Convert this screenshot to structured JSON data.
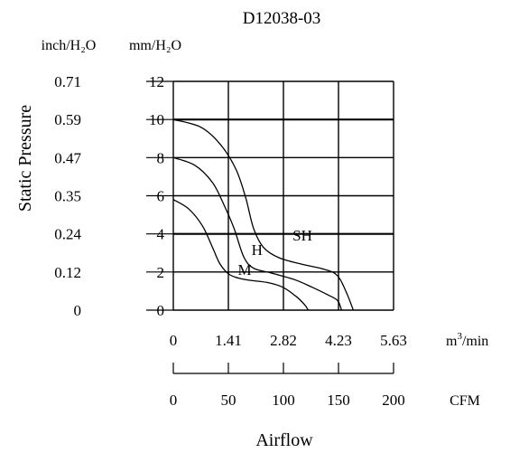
{
  "chart_data": {
    "type": "line",
    "title": "D12038-03",
    "left_axis": {
      "label": "Static Pressure",
      "units": [
        "inch/H₂O",
        "mm/H₂O"
      ],
      "ticks_mm": [
        "0",
        "2",
        "4",
        "6",
        "8",
        "10",
        "12"
      ],
      "ticks_inch": [
        "0",
        "0.12",
        "0.24",
        "0.35",
        "0.47",
        "0.59",
        "0.71"
      ],
      "ylim": [
        0,
        12
      ]
    },
    "bottom_axis": {
      "label": "Airflow",
      "ticks_m3min": [
        "0",
        "1.41",
        "2.82",
        "4.23",
        "5.63"
      ],
      "unit_m3min_base": "m",
      "unit_m3min_sup": "3",
      "unit_m3min_tail": "/min",
      "ticks_cfm": [
        "0",
        "50",
        "100",
        "150",
        "200"
      ],
      "unit_cfm": "CFM",
      "xlim": [
        0,
        5.63
      ]
    },
    "series": [
      {
        "name": "SH",
        "points": [
          [
            0,
            10.0
          ],
          [
            0.7,
            9.6
          ],
          [
            1.2,
            8.7
          ],
          [
            1.6,
            7.4
          ],
          [
            1.85,
            5.9
          ],
          [
            2.05,
            4.3
          ],
          [
            2.3,
            3.3
          ],
          [
            2.7,
            2.75
          ],
          [
            3.3,
            2.4
          ],
          [
            3.85,
            2.15
          ],
          [
            4.2,
            1.8
          ],
          [
            4.45,
            0.8
          ],
          [
            4.6,
            0
          ]
        ]
      },
      {
        "name": "H",
        "points": [
          [
            0,
            8.0
          ],
          [
            0.55,
            7.6
          ],
          [
            1.0,
            6.7
          ],
          [
            1.3,
            5.5
          ],
          [
            1.55,
            4.3
          ],
          [
            1.8,
            2.8
          ],
          [
            2.05,
            2.2
          ],
          [
            2.5,
            1.95
          ],
          [
            3.1,
            1.6
          ],
          [
            3.55,
            1.2
          ],
          [
            3.95,
            0.8
          ],
          [
            4.2,
            0.5
          ],
          [
            4.3,
            0
          ]
        ]
      },
      {
        "name": "M",
        "points": [
          [
            0,
            5.8
          ],
          [
            0.4,
            5.3
          ],
          [
            0.75,
            4.4
          ],
          [
            1.0,
            3.3
          ],
          [
            1.2,
            2.4
          ],
          [
            1.45,
            1.85
          ],
          [
            1.85,
            1.6
          ],
          [
            2.4,
            1.45
          ],
          [
            2.8,
            1.2
          ],
          [
            3.15,
            0.7
          ],
          [
            3.35,
            0.3
          ],
          [
            3.45,
            0
          ]
        ]
      }
    ],
    "curve_labels": {
      "SH": {
        "text": "SH",
        "x": 3.05,
        "y": 3.65
      },
      "H": {
        "text": "H",
        "x": 2.0,
        "y": 2.9
      },
      "M": {
        "text": "M",
        "x": 1.65,
        "y": 1.85
      }
    },
    "grid": true
  }
}
